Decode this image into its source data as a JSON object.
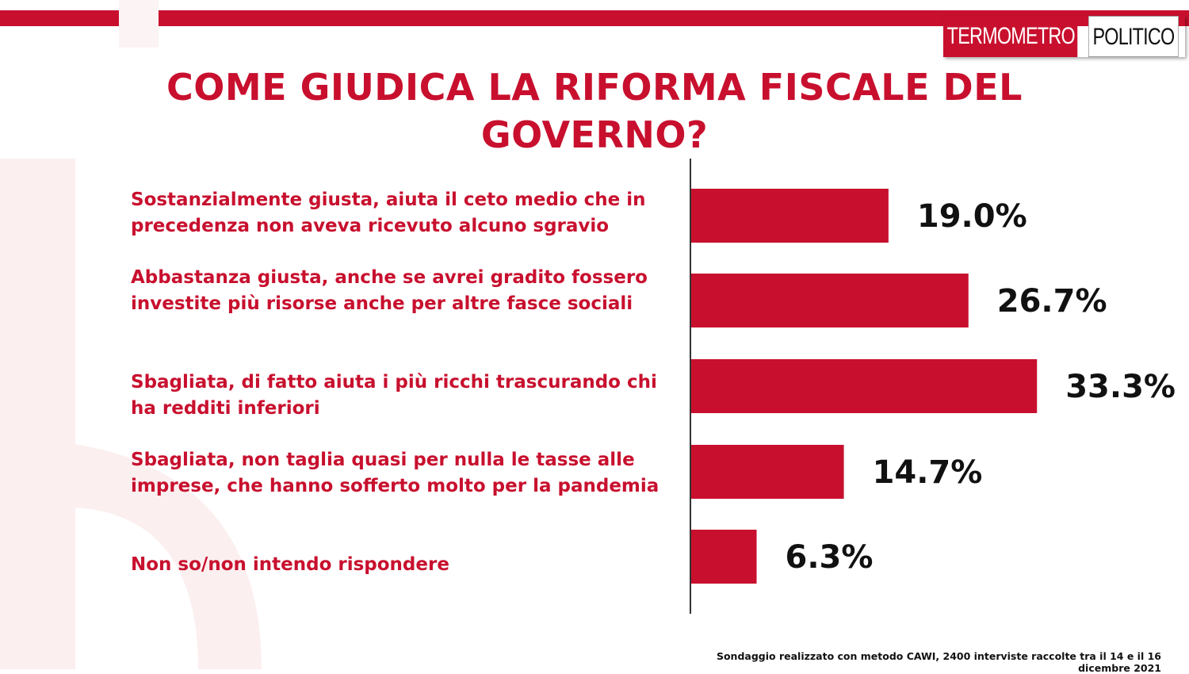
{
  "brand": {
    "logo_left": "TERMOMETRO",
    "logo_right": "POLITICO",
    "accent_color": "#c8102e"
  },
  "chart_data": {
    "type": "bar",
    "orientation": "horizontal",
    "title": "COME GIUDICA LA RIFORMA FISCALE DEL GOVERNO?",
    "categories": [
      "Sostanzialmente giusta, aiuta il ceto medio che in precedenza non aveva ricevuto alcuno sgravio",
      "Abbastanza giusta, anche se avrei gradito fossero investite più risorse anche per altre fasce sociali",
      "Sbagliata, di fatto aiuta i più ricchi trascurando chi ha redditi inferiori",
      "Sbagliata, non taglia quasi per nulla le tasse alle imprese, che hanno sofferto molto per la pandemia",
      "Non so/non intendo rispondere"
    ],
    "values": [
      19.0,
      26.7,
      33.3,
      14.7,
      6.3
    ],
    "value_labels": [
      "19.0%",
      "26.7%",
      "33.3%",
      "14.7%",
      "6.3%"
    ],
    "bar_color": "#c8102e",
    "grid": false
  },
  "footnote": "Sondaggio realizzato con metodo CAWI, 2400 interviste raccolte tra il 14 e il 16 dicembre 2021"
}
